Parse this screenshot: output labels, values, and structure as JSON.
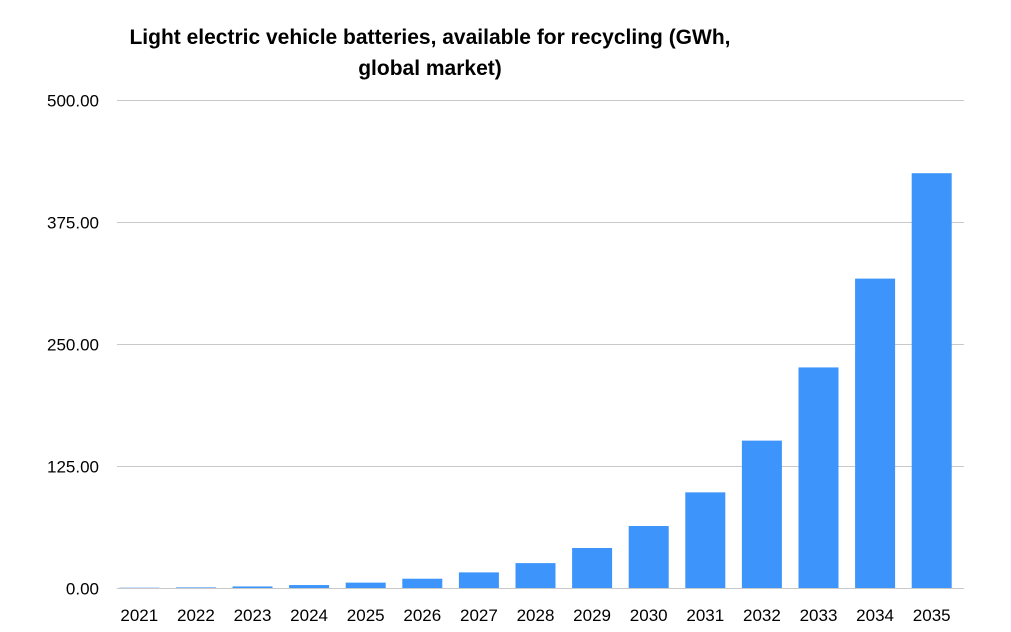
{
  "chart_data": {
    "type": "bar",
    "title_lines": [
      "Light electric vehicle batteries, available for recycling (GWh,",
      "global market)"
    ],
    "categories": [
      "2021",
      "2022",
      "2023",
      "2024",
      "2025",
      "2026",
      "2027",
      "2028",
      "2029",
      "2030",
      "2031",
      "2032",
      "2033",
      "2034",
      "2035"
    ],
    "values": [
      0.3,
      0.6,
      1.6,
      3.0,
      5.5,
      9.5,
      16.0,
      25.5,
      41.0,
      63.5,
      98.0,
      151.0,
      226.0,
      317.0,
      425.0
    ],
    "yticks": [
      "0.00",
      "125.00",
      "250.00",
      "375.00",
      "500.00"
    ],
    "ylim": [
      0,
      500
    ],
    "xlabel": "",
    "ylabel": "",
    "grid": true,
    "bar_color": "#3d95fc",
    "grid_color": "#c9c9c9"
  }
}
